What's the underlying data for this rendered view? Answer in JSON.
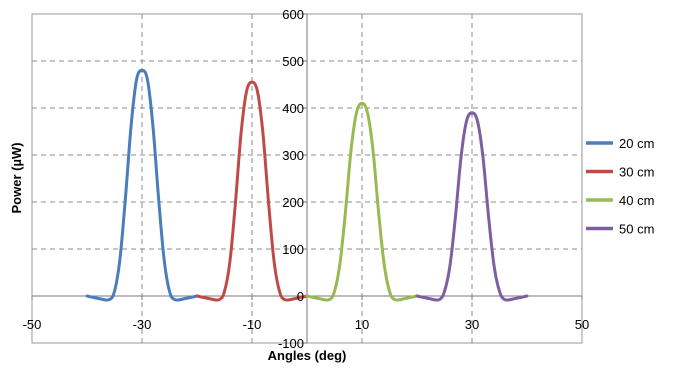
{
  "chart_data": {
    "type": "line",
    "title": "",
    "xlabel": "Angles (deg)",
    "ylabel": "Power (µW)",
    "xlim": [
      -50,
      50
    ],
    "ylim": [
      -100,
      600
    ],
    "x_ticks": [
      -50,
      -30,
      -10,
      10,
      30,
      50
    ],
    "y_ticks": [
      -100,
      0,
      100,
      200,
      300,
      400,
      500,
      600
    ],
    "grid": true,
    "legend_position": "right",
    "series": [
      {
        "name": "20 cm",
        "color": "#4a7ebb",
        "peak_x": -30,
        "x": [
          -40,
          -38,
          -36,
          -35,
          -34,
          -33,
          -32,
          -31,
          -30,
          -29,
          -28,
          -27,
          -26,
          -25,
          -24,
          -22,
          -20
        ],
        "y": [
          0,
          -5,
          -8,
          10,
          80,
          210,
          360,
          460,
          480,
          460,
          360,
          210,
          80,
          10,
          -8,
          -5,
          0
        ]
      },
      {
        "name": "30 cm",
        "color": "#be4b48",
        "peak_x": -10,
        "x": [
          -20,
          -18,
          -16,
          -15,
          -14,
          -13,
          -12,
          -11,
          -10,
          -9,
          -8,
          -7,
          -6,
          -5,
          -4,
          -2,
          0
        ],
        "y": [
          0,
          -5,
          -8,
          10,
          75,
          200,
          345,
          435,
          455,
          435,
          345,
          200,
          75,
          10,
          -8,
          -5,
          0
        ]
      },
      {
        "name": "40 cm",
        "color": "#98b954",
        "peak_x": 10,
        "x": [
          0,
          2,
          4,
          5,
          6,
          7,
          8,
          9,
          10,
          11,
          12,
          13,
          14,
          15,
          16,
          18,
          20
        ],
        "y": [
          0,
          -5,
          -8,
          10,
          70,
          180,
          310,
          390,
          410,
          390,
          310,
          180,
          70,
          10,
          -8,
          -5,
          0
        ]
      },
      {
        "name": "50 cm",
        "color": "#7d5fa0",
        "peak_x": 30,
        "x": [
          20,
          22,
          24,
          25,
          26,
          27,
          28,
          29,
          30,
          31,
          32,
          33,
          34,
          35,
          36,
          38,
          40
        ],
        "y": [
          0,
          -5,
          -8,
          10,
          65,
          170,
          295,
          372,
          390,
          372,
          295,
          170,
          65,
          10,
          -8,
          -5,
          0
        ]
      }
    ]
  }
}
